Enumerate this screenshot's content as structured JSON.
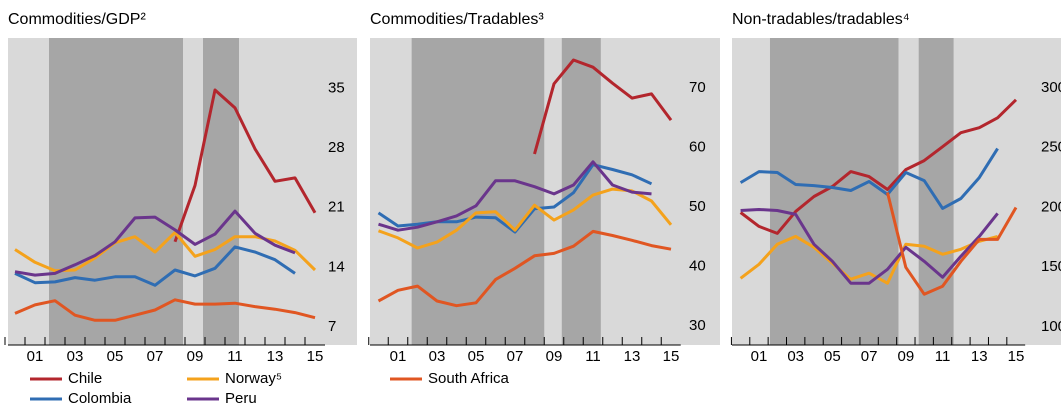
{
  "chart_data": [
    {
      "type": "line",
      "title": "Commodities/GDP²",
      "categories": [
        null,
        "01",
        null,
        "03",
        null,
        "05",
        null,
        "07",
        null,
        "09",
        null,
        "11",
        null,
        "13",
        null,
        "15"
      ],
      "shaded_periods": [
        {
          "from": 1.7,
          "to": 8.4
        },
        {
          "from": 9.4,
          "to": 11.2
        }
      ],
      "ylim": [
        4.9,
        40.9
      ],
      "yticks": [
        7,
        14,
        21,
        28,
        35
      ],
      "series": [
        {
          "name": "Chile",
          "color": "#b3262d",
          "values": [
            null,
            null,
            null,
            null,
            null,
            null,
            null,
            null,
            17.0,
            23.6,
            34.8,
            32.7,
            27.9,
            24.1,
            24.5,
            20.4
          ]
        },
        {
          "name": "Colombia",
          "color": "#2f6db3",
          "values": [
            13.3,
            12.2,
            12.3,
            12.8,
            12.5,
            12.9,
            12.9,
            11.9,
            13.7,
            13.0,
            13.9,
            16.4,
            15.8,
            14.9,
            13.3,
            null
          ]
        },
        {
          "name": "Norway⁵",
          "color": "#f4a21c",
          "values": [
            16.1,
            14.6,
            13.6,
            13.7,
            15.1,
            16.9,
            17.6,
            15.8,
            18.1,
            15.3,
            16.1,
            17.6,
            17.6,
            17.1,
            16.0,
            13.7
          ]
        },
        {
          "name": "Peru",
          "color": "#6a358c",
          "values": [
            13.5,
            13.1,
            13.3,
            14.3,
            15.4,
            17.0,
            19.8,
            19.9,
            18.4,
            16.7,
            17.9,
            20.6,
            18.0,
            16.6,
            15.7,
            null
          ]
        },
        {
          "name": "South Africa",
          "color": "#e05622",
          "values": [
            8.6,
            9.6,
            10.1,
            8.4,
            7.8,
            7.8,
            8.4,
            9.0,
            10.2,
            9.7,
            9.7,
            9.8,
            9.4,
            9.1,
            8.7,
            8.1
          ]
        }
      ]
    },
    {
      "type": "line",
      "title": "Commodities/Tradables³",
      "categories": [
        null,
        "01",
        null,
        "03",
        null,
        "05",
        null,
        "07",
        null,
        "09",
        null,
        "11",
        null,
        "13",
        null,
        "15"
      ],
      "shaded_periods": [
        {
          "from": 1.7,
          "to": 8.5
        },
        {
          "from": 9.4,
          "to": 11.4
        }
      ],
      "ylim": [
        26.8,
        78.4
      ],
      "yticks": [
        30,
        40,
        50,
        60,
        70
      ],
      "series": [
        {
          "name": "Chile",
          "color": "#b3262d",
          "values": [
            null,
            null,
            null,
            null,
            null,
            null,
            null,
            null,
            58.9,
            70.7,
            74.7,
            73.5,
            70.8,
            68.3,
            69.0,
            64.6
          ]
        },
        {
          "name": "Colombia",
          "color": "#2f6db3",
          "values": [
            49.0,
            46.8,
            47.1,
            47.5,
            47.5,
            48.3,
            48.2,
            45.8,
            49.7,
            50.0,
            52.4,
            57.1,
            56.3,
            55.4,
            53.9,
            null
          ]
        },
        {
          "name": "Norway⁵",
          "color": "#f4a21c",
          "values": [
            46.0,
            44.8,
            43.1,
            44.1,
            46.1,
            49.0,
            49.2,
            46.1,
            50.3,
            47.8,
            49.5,
            52.0,
            53.0,
            52.7,
            51.0,
            47.0
          ]
        },
        {
          "name": "Peru",
          "color": "#6a358c",
          "values": [
            47.1,
            46.1,
            46.6,
            47.5,
            48.5,
            50.2,
            54.4,
            54.4,
            53.4,
            52.2,
            53.7,
            57.6,
            53.7,
            52.5,
            52.2,
            null
          ]
        },
        {
          "name": "South Africa",
          "color": "#e05622",
          "values": [
            34.2,
            36.0,
            36.7,
            34.2,
            33.4,
            33.9,
            37.8,
            39.7,
            41.8,
            42.2,
            43.4,
            45.9,
            45.2,
            44.4,
            43.5,
            42.9
          ]
        }
      ]
    },
    {
      "type": "line",
      "title": "Non-tradables/tradables⁴",
      "categories": [
        null,
        "01",
        null,
        "03",
        null,
        "05",
        null,
        "07",
        null,
        "09",
        null,
        "11",
        null,
        "13",
        null,
        "15"
      ],
      "shaded_periods": [
        {
          "from": 1.6,
          "to": 8.6
        },
        {
          "from": 9.7,
          "to": 11.6
        }
      ],
      "ylim": [
        85,
        341.7
      ],
      "yticks": [
        100,
        150,
        200,
        250,
        300
      ],
      "series": [
        {
          "name": "Chile",
          "color": "#b3262d",
          "values": [
            195.8,
            184.2,
            178.3,
            196.7,
            209.2,
            217.5,
            230.0,
            225.8,
            215.0,
            231.7,
            239.2,
            250.8,
            262.5,
            266.7,
            275.0,
            290.0
          ]
        },
        {
          "name": "Colombia",
          "color": "#2f6db3",
          "values": [
            220.8,
            230.0,
            229.2,
            219.2,
            218.3,
            216.7,
            214.2,
            221.7,
            210.8,
            229.2,
            222.5,
            199.2,
            207.5,
            225.0,
            249.2,
            null
          ]
        },
        {
          "name": "Norway⁵",
          "color": "#f4a21c",
          "values": [
            140.8,
            152.5,
            169.2,
            175.8,
            166.7,
            153.3,
            140.0,
            145.0,
            136.7,
            169.2,
            167.5,
            160.8,
            165.0,
            171.7,
            175.8,
            null
          ]
        },
        {
          "name": "Peru",
          "color": "#6a358c",
          "values": [
            197.5,
            198.3,
            197.5,
            194.2,
            169.2,
            155.0,
            136.7,
            136.7,
            148.3,
            166.7,
            155.0,
            141.7,
            159.2,
            175.8,
            195.0,
            null
          ]
        },
        {
          "name": "South Africa",
          "color": "#e05622",
          "values": [
            null,
            null,
            null,
            null,
            null,
            null,
            null,
            null,
            212.5,
            150.0,
            127.5,
            134.2,
            155.0,
            173.3,
            173.3,
            200.0
          ]
        }
      ]
    }
  ]
}
